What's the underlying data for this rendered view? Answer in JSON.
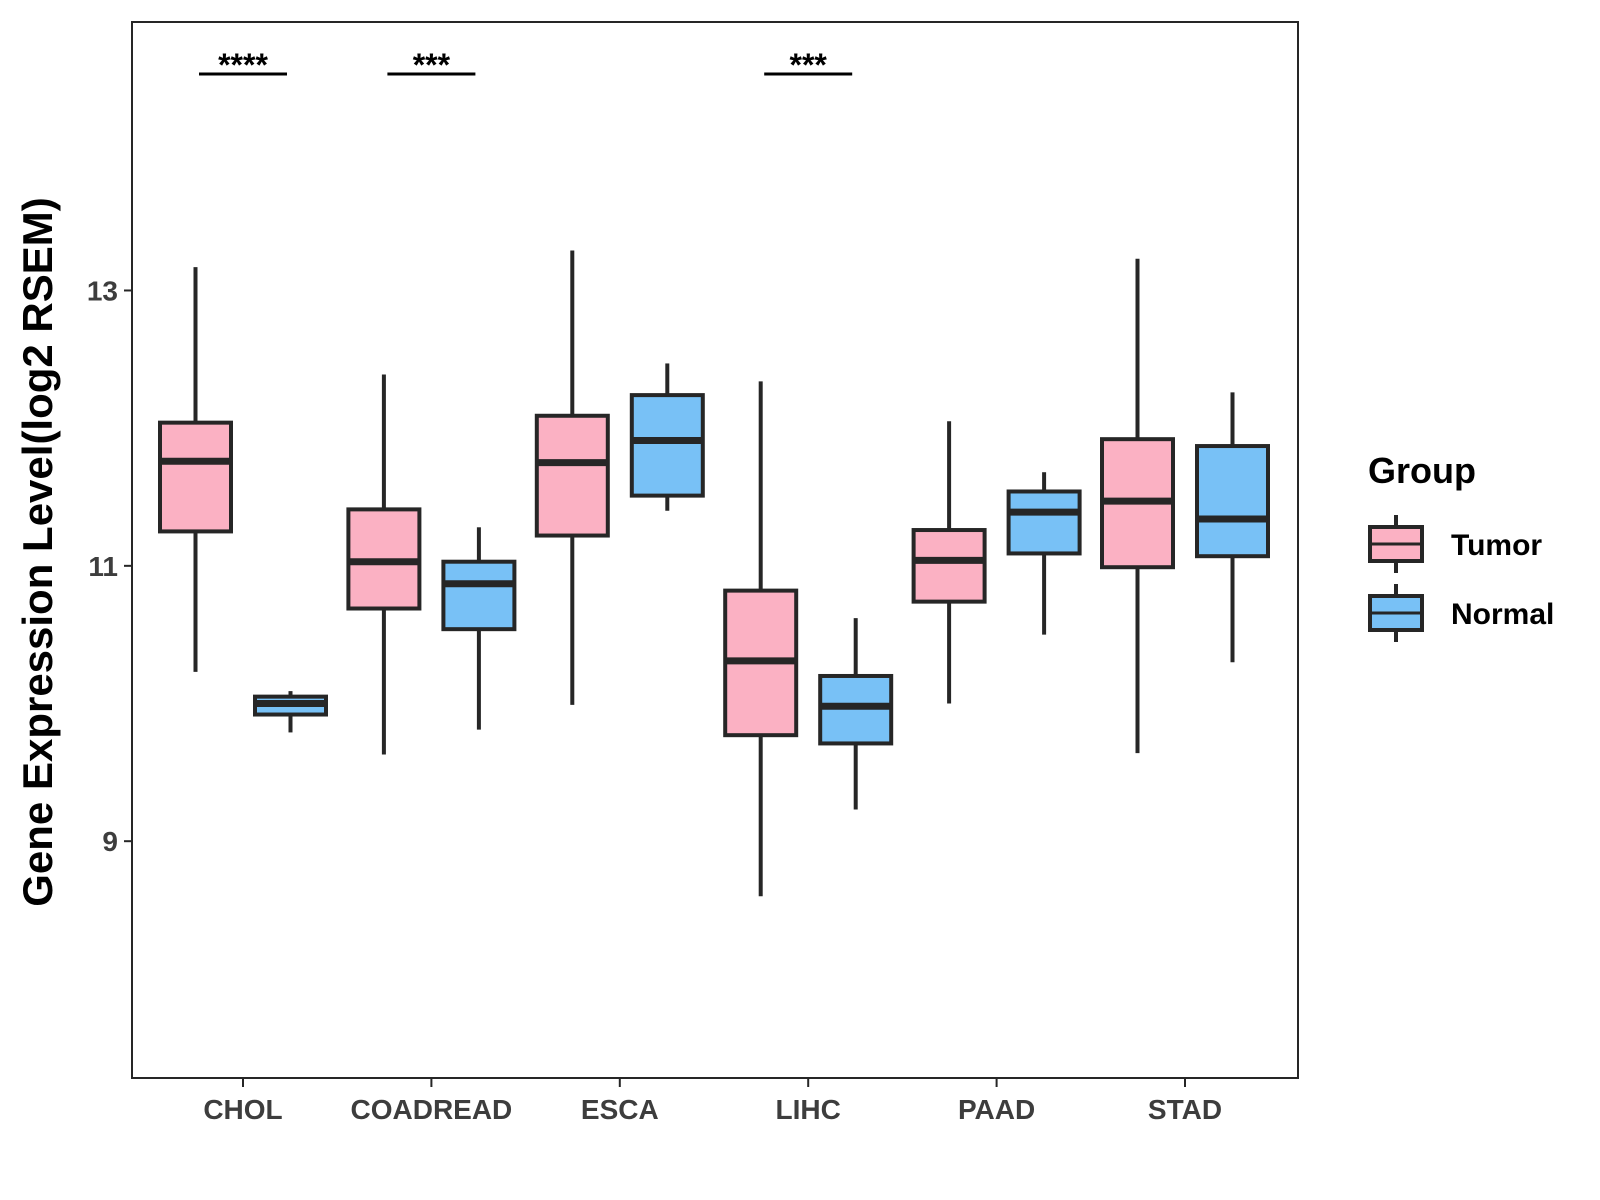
{
  "chart_data": {
    "type": "box",
    "title": "",
    "ylabel": "Gene Expression Level(log2 RSEM)",
    "xlabel": "",
    "ylim": [
      7.28,
      14.95
    ],
    "yticks": [
      9,
      11,
      13
    ],
    "categories": [
      "CHOL",
      "COADREAD",
      "ESCA",
      "LIHC",
      "PAAD",
      "STAD"
    ],
    "series": [
      {
        "name": "Tumor",
        "color": "#fbb1c3",
        "boxes": [
          {
            "category": "CHOL",
            "whisker_low": 10.23,
            "q1": 11.25,
            "median": 11.76,
            "q3": 12.04,
            "whisker_high": 13.17
          },
          {
            "category": "COADREAD",
            "whisker_low": 9.63,
            "q1": 10.69,
            "median": 11.03,
            "q3": 11.41,
            "whisker_high": 12.39
          },
          {
            "category": "ESCA",
            "whisker_low": 9.99,
            "q1": 11.22,
            "median": 11.75,
            "q3": 12.09,
            "whisker_high": 13.29
          },
          {
            "category": "LIHC",
            "whisker_low": 8.6,
            "q1": 9.77,
            "median": 10.31,
            "q3": 10.82,
            "whisker_high": 12.34
          },
          {
            "category": "PAAD",
            "whisker_low": 10.0,
            "q1": 10.74,
            "median": 11.04,
            "q3": 11.26,
            "whisker_high": 12.05
          },
          {
            "category": "STAD",
            "whisker_low": 9.64,
            "q1": 10.99,
            "median": 11.47,
            "q3": 11.92,
            "whisker_high": 13.23
          }
        ]
      },
      {
        "name": "Normal",
        "color": "#78c1f6",
        "boxes": [
          {
            "category": "CHOL",
            "whisker_low": 9.79,
            "q1": 9.92,
            "median": 10.0,
            "q3": 10.05,
            "whisker_high": 10.09
          },
          {
            "category": "COADREAD",
            "whisker_low": 9.81,
            "q1": 10.54,
            "median": 10.87,
            "q3": 11.03,
            "whisker_high": 11.28
          },
          {
            "category": "ESCA",
            "whisker_low": 11.4,
            "q1": 11.51,
            "median": 11.91,
            "q3": 12.24,
            "whisker_high": 12.47
          },
          {
            "category": "LIHC",
            "whisker_low": 9.23,
            "q1": 9.71,
            "median": 9.98,
            "q3": 10.2,
            "whisker_high": 10.62
          },
          {
            "category": "PAAD",
            "whisker_low": 10.5,
            "q1": 11.09,
            "median": 11.39,
            "q3": 11.54,
            "whisker_high": 11.68
          },
          {
            "category": "STAD",
            "whisker_low": 10.3,
            "q1": 11.07,
            "median": 11.34,
            "q3": 11.87,
            "whisker_high": 12.26
          }
        ]
      }
    ],
    "significance": [
      {
        "category": "CHOL",
        "label": "****"
      },
      {
        "category": "COADREAD",
        "label": "***"
      },
      {
        "category": "LIHC",
        "label": "***"
      }
    ],
    "legend": {
      "title": "Group",
      "position": "right",
      "entries": [
        {
          "name": "Tumor",
          "color": "#fbb1c3"
        },
        {
          "name": "Normal",
          "color": "#78c1f6"
        }
      ]
    }
  }
}
